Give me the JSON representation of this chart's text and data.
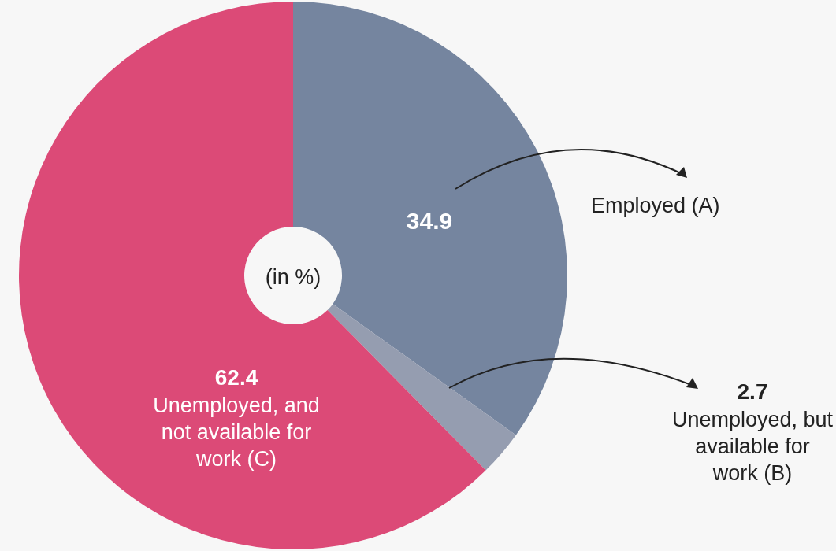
{
  "chart_data": {
    "type": "donut",
    "categories": [
      "Employed (A)",
      "Unemployed, but available for work (B)",
      "Unemployed, and not available for work (C)"
    ],
    "values": [
      34.9,
      2.7,
      62.4
    ],
    "colors": [
      "#75859f",
      "#959db0",
      "#dc4a77"
    ],
    "data_labels": true,
    "legend": false,
    "annotations": [
      "(in %)"
    ]
  }
}
